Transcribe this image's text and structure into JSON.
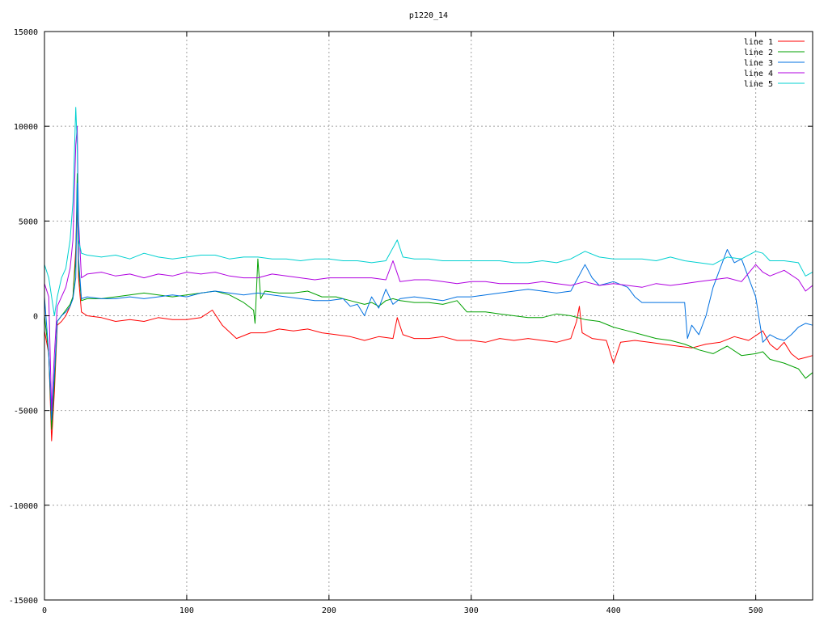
{
  "chart_data": {
    "type": "line",
    "title": "p1220_14",
    "xlabel": "",
    "ylabel": "",
    "xlim": [
      0,
      540
    ],
    "ylim": [
      -15000,
      15000
    ],
    "xticks": [
      0,
      100,
      200,
      300,
      400,
      500
    ],
    "yticks": [
      -15000,
      -10000,
      -5000,
      0,
      5000,
      10000,
      15000
    ],
    "grid": true,
    "legend_position": "top-right",
    "series": [
      {
        "name": "line 1",
        "color": "#ff0000",
        "x": [
          0,
          3,
          5,
          7,
          9,
          12,
          15,
          18,
          20,
          22,
          23,
          24,
          26,
          30,
          40,
          50,
          60,
          70,
          80,
          90,
          100,
          110,
          118,
          125,
          135,
          145,
          155,
          165,
          175,
          185,
          195,
          205,
          215,
          225,
          235,
          245,
          248,
          252,
          260,
          270,
          280,
          290,
          300,
          310,
          320,
          330,
          340,
          350,
          360,
          370,
          374,
          376,
          378,
          385,
          395,
          400,
          405,
          415,
          425,
          435,
          445,
          455,
          465,
          475,
          485,
          495,
          505,
          510,
          515,
          520,
          525,
          530,
          535,
          540
        ],
        "y": [
          -800,
          -2000,
          -6600,
          -4000,
          -500,
          -300,
          0,
          500,
          1000,
          3500,
          6000,
          2000,
          200,
          0,
          -100,
          -300,
          -200,
          -300,
          -100,
          -200,
          -200,
          -100,
          300,
          -500,
          -1200,
          -900,
          -900,
          -700,
          -800,
          -700,
          -900,
          -1000,
          -1100,
          -1300,
          -1100,
          -1200,
          -100,
          -1000,
          -1200,
          -1200,
          -1100,
          -1300,
          -1300,
          -1400,
          -1200,
          -1300,
          -1200,
          -1300,
          -1400,
          -1200,
          -300,
          500,
          -900,
          -1200,
          -1300,
          -2500,
          -1400,
          -1300,
          -1400,
          -1500,
          -1600,
          -1700,
          -1500,
          -1400,
          -1100,
          -1300,
          -800,
          -1500,
          -1800,
          -1400,
          -2000,
          -2300,
          -2200,
          -2100
        ]
      },
      {
        "name": "line 2",
        "color": "#00a000",
        "x": [
          0,
          3,
          5,
          7,
          9,
          12,
          15,
          18,
          20,
          22,
          23,
          24,
          26,
          30,
          40,
          50,
          60,
          70,
          80,
          90,
          100,
          110,
          120,
          130,
          140,
          147,
          148,
          150,
          152,
          155,
          165,
          175,
          185,
          195,
          205,
          215,
          225,
          230,
          235,
          240,
          245,
          250,
          260,
          270,
          280,
          290,
          297,
          300,
          310,
          320,
          330,
          340,
          350,
          360,
          370,
          380,
          390,
          400,
          410,
          420,
          430,
          440,
          450,
          460,
          470,
          480,
          490,
          500,
          505,
          510,
          520,
          530,
          535,
          540
        ],
        "y": [
          0,
          -2000,
          -6000,
          -3500,
          -300,
          0,
          300,
          600,
          1000,
          3000,
          7500,
          2500,
          800,
          900,
          900,
          1000,
          1100,
          1200,
          1100,
          1000,
          1100,
          1200,
          1300,
          1100,
          700,
          300,
          -400,
          3000,
          900,
          1300,
          1200,
          1200,
          1300,
          1000,
          1000,
          800,
          600,
          700,
          500,
          800,
          900,
          800,
          700,
          700,
          600,
          800,
          200,
          200,
          200,
          100,
          0,
          -100,
          -100,
          100,
          0,
          -200,
          -300,
          -600,
          -800,
          -1000,
          -1200,
          -1300,
          -1500,
          -1800,
          -2000,
          -1600,
          -2100,
          -2000,
          -1900,
          -2300,
          -2500,
          -2800,
          -3300,
          -3000
        ]
      },
      {
        "name": "line 3",
        "color": "#0070e0",
        "x": [
          0,
          3,
          5,
          7,
          9,
          12,
          15,
          18,
          20,
          22,
          23,
          24,
          26,
          30,
          40,
          50,
          60,
          70,
          80,
          90,
          100,
          110,
          120,
          130,
          140,
          150,
          160,
          170,
          180,
          190,
          200,
          210,
          215,
          220,
          225,
          230,
          235,
          240,
          245,
          250,
          260,
          270,
          280,
          290,
          300,
          310,
          320,
          330,
          340,
          350,
          360,
          370,
          380,
          385,
          390,
          400,
          410,
          415,
          420,
          430,
          440,
          450,
          452,
          455,
          460,
          465,
          470,
          475,
          480,
          485,
          490,
          495,
          500,
          505,
          510,
          515,
          520,
          525,
          530,
          535,
          540
        ],
        "y": [
          1000,
          -2000,
          -5500,
          -3000,
          -300,
          0,
          200,
          500,
          900,
          2000,
          7000,
          3000,
          900,
          1000,
          900,
          900,
          1000,
          900,
          1000,
          1100,
          1000,
          1200,
          1300,
          1200,
          1100,
          1200,
          1100,
          1000,
          900,
          800,
          800,
          900,
          500,
          600,
          0,
          1000,
          400,
          1400,
          600,
          900,
          1000,
          900,
          800,
          1000,
          1000,
          1100,
          1200,
          1300,
          1400,
          1300,
          1200,
          1300,
          2700,
          2000,
          1600,
          1800,
          1500,
          1000,
          700,
          700,
          700,
          700,
          -1200,
          -500,
          -1000,
          0,
          1500,
          2500,
          3500,
          2800,
          3000,
          2000,
          1000,
          -1400,
          -1000,
          -1200,
          -1300,
          -1000,
          -600,
          -400,
          -500
        ]
      },
      {
        "name": "line 4",
        "color": "#b000e0",
        "x": [
          0,
          3,
          5,
          7,
          9,
          12,
          15,
          18,
          20,
          22,
          23,
          24,
          26,
          30,
          40,
          50,
          60,
          70,
          80,
          90,
          100,
          110,
          120,
          130,
          140,
          150,
          160,
          170,
          180,
          190,
          200,
          210,
          220,
          230,
          240,
          245,
          250,
          260,
          270,
          280,
          290,
          300,
          310,
          320,
          330,
          340,
          350,
          360,
          370,
          380,
          390,
          400,
          410,
          420,
          430,
          440,
          450,
          460,
          470,
          480,
          490,
          500,
          505,
          510,
          520,
          530,
          535,
          540
        ],
        "y": [
          1700,
          1000,
          -5000,
          -2000,
          500,
          1000,
          1500,
          2500,
          4000,
          9000,
          10000,
          5000,
          2000,
          2200,
          2300,
          2100,
          2200,
          2000,
          2200,
          2100,
          2300,
          2200,
          2300,
          2100,
          2000,
          2000,
          2200,
          2100,
          2000,
          1900,
          2000,
          2000,
          2000,
          2000,
          1900,
          2900,
          1800,
          1900,
          1900,
          1800,
          1700,
          1800,
          1800,
          1700,
          1700,
          1700,
          1800,
          1700,
          1600,
          1800,
          1600,
          1700,
          1600,
          1500,
          1700,
          1600,
          1700,
          1800,
          1900,
          2000,
          1800,
          2700,
          2300,
          2100,
          2400,
          1900,
          1300,
          1600
        ]
      },
      {
        "name": "line 5",
        "color": "#00d0d0",
        "x": [
          0,
          3,
          5,
          7,
          9,
          12,
          15,
          18,
          20,
          22,
          23,
          24,
          26,
          30,
          40,
          50,
          60,
          70,
          80,
          90,
          100,
          110,
          120,
          130,
          140,
          150,
          160,
          170,
          180,
          190,
          200,
          210,
          220,
          230,
          240,
          248,
          252,
          260,
          270,
          280,
          290,
          300,
          310,
          320,
          330,
          340,
          350,
          360,
          370,
          380,
          390,
          400,
          410,
          420,
          430,
          440,
          450,
          460,
          470,
          480,
          490,
          500,
          505,
          510,
          520,
          530,
          535,
          540
        ],
        "y": [
          2700,
          2000,
          1000,
          0,
          1000,
          2000,
          2500,
          4000,
          6000,
          11000,
          9000,
          4000,
          3300,
          3200,
          3100,
          3200,
          3000,
          3300,
          3100,
          3000,
          3100,
          3200,
          3200,
          3000,
          3100,
          3100,
          3000,
          3000,
          2900,
          3000,
          3000,
          2900,
          2900,
          2800,
          2900,
          4000,
          3100,
          3000,
          3000,
          2900,
          2900,
          2900,
          2900,
          2900,
          2800,
          2800,
          2900,
          2800,
          3000,
          3400,
          3100,
          3000,
          3000,
          3000,
          2900,
          3100,
          2900,
          2800,
          2700,
          3100,
          3000,
          3400,
          3300,
          2900,
          2900,
          2800,
          2100,
          2300
        ]
      }
    ]
  }
}
